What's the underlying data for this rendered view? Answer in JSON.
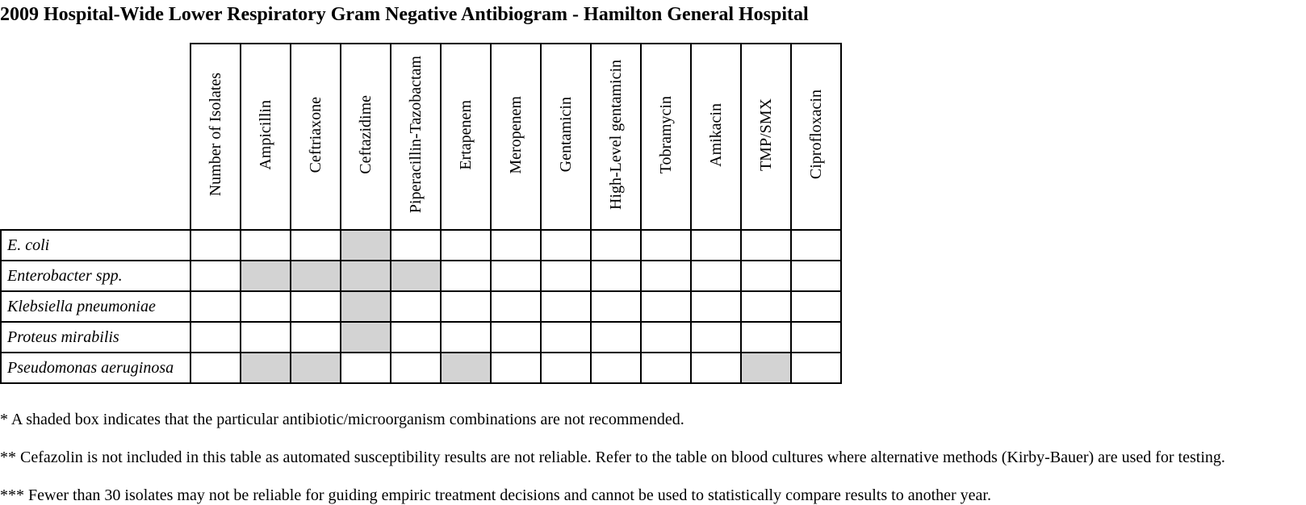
{
  "title": "2009 Hospital-Wide Lower Respiratory Gram Negative Antibiogram - Hamilton General Hospital",
  "columns": [
    "Number of Isolates",
    "Ampicillin",
    "Ceftriaxone",
    "Ceftazidime",
    "Piperacillin-Tazobactam",
    "Ertapenem",
    "Meropenem",
    "Gentamicin",
    "High-Level gentamicin",
    "Tobramycin",
    "Amikacin",
    "TMP/SMX",
    "Ciprofloxacin"
  ],
  "rows": [
    {
      "organism": "E. coli",
      "shaded_columns": [
        "Ceftazidime"
      ]
    },
    {
      "organism": "Enterobacter spp.",
      "shaded_columns": [
        "Ampicillin",
        "Ceftriaxone",
        "Ceftazidime",
        "Piperacillin-Tazobactam"
      ]
    },
    {
      "organism": "Klebsiella pneumoniae",
      "shaded_columns": [
        "Ceftazidime"
      ]
    },
    {
      "organism": "Proteus mirabilis",
      "shaded_columns": [
        "Ceftazidime"
      ]
    },
    {
      "organism": "Pseudomonas aeruginosa",
      "shaded_columns": [
        "Ampicillin",
        "Ceftriaxone",
        "Ertapenem",
        "TMP/SMX"
      ]
    }
  ],
  "shade_color": "#d3d3d3",
  "notes": [
    "* A shaded box indicates that the particular antibiotic/microorganism combinations are not recommended.",
    "** Cefazolin is not included in this table as automated susceptibility results are not reliable. Refer to the table on blood cultures where alternative methods (Kirby-Bauer) are used for testing.",
    "*** Fewer than 30 isolates may not be reliable for guiding empiric treatment decisions and cannot be used to statistically compare results to another year."
  ]
}
